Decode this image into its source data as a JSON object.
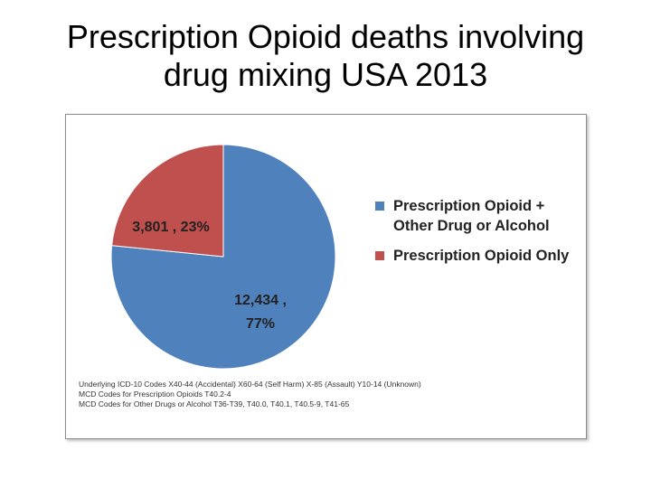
{
  "slide": {
    "title_line1": "Prescription Opioid deaths involving",
    "title_line2": "drug mixing USA 2013"
  },
  "chart_data": {
    "type": "pie",
    "title": "Prescription Opioid deaths involving drug mixing USA 2013",
    "slices": [
      {
        "name": "Prescription Opioid + Other Drug or Alcohol",
        "value": 12434,
        "percent": 77,
        "label_line1": "12,434 ,",
        "label_line2": "77%",
        "color": "#4f81bd"
      },
      {
        "name": "Prescription Opioid Only",
        "value": 3801,
        "percent": 23,
        "label_line1": "3,801 , 23%",
        "label_line2": "",
        "color": "#c0504d"
      }
    ],
    "legend": {
      "position": "right",
      "items": [
        {
          "line1": "Prescription Opioid +",
          "line2": "Other Drug or Alcohol",
          "color": "#4f81bd"
        },
        {
          "line1": "Prescription Opioid Only",
          "line2": "",
          "color": "#c0504d"
        }
      ]
    }
  },
  "footnotes": [
    "Underlying ICD-10 Codes X40-44 (Accidental) X60-64 (Self Harm) X-85 (Assault) Y10-14 (Unknown)",
    "MCD Codes for Prescription Opioids T40.2-4",
    "MCD Codes for Other Drugs or Alcohol T36-T39, T40.0, T40.1, T40.5-9, T41-65"
  ]
}
